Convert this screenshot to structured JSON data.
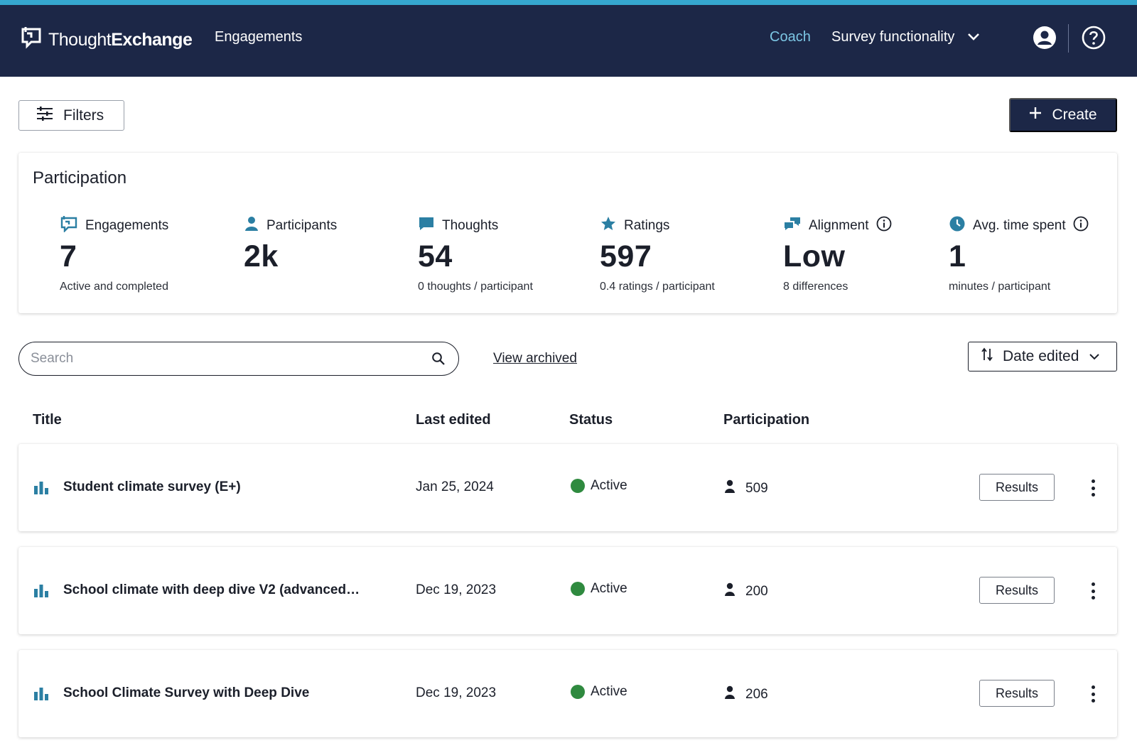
{
  "colors": {
    "header_bg": "#1c2747",
    "accent_stripe": "#35a7cf",
    "teal_icon": "#2b7fa3",
    "status_active": "#2f8a3f",
    "coach_link": "#7cc6e4"
  },
  "header": {
    "logo_light": "Thought",
    "logo_bold": "Exchange",
    "nav_engagements": "Engagements",
    "coach": "Coach",
    "workspace": "Survey functionality",
    "icons": [
      "logo-icon",
      "chevron-down-icon",
      "account-icon",
      "help-icon"
    ]
  },
  "toolbar": {
    "filters_label": "Filters",
    "create_label": "Create"
  },
  "participation": {
    "title": "Participation",
    "stats": [
      {
        "icon": "engagements-icon",
        "label": "Engagements",
        "value": "7",
        "sub": "Active and completed"
      },
      {
        "icon": "person-icon",
        "label": "Participants",
        "value": "2k",
        "sub": ""
      },
      {
        "icon": "chat-bubble-icon",
        "label": "Thoughts",
        "value": "54",
        "sub": "0 thoughts / participant"
      },
      {
        "icon": "star-icon",
        "label": "Ratings",
        "value": "597",
        "sub": "0.4 ratings / participant"
      },
      {
        "icon": "alignment-icon",
        "label": "Alignment",
        "value": "Low",
        "sub": "8 differences",
        "info": true
      },
      {
        "icon": "clock-icon",
        "label": "Avg. time spent",
        "value": "1",
        "sub": "minutes / participant",
        "info": true
      }
    ]
  },
  "search": {
    "placeholder": "Search",
    "value": ""
  },
  "view_archived": "View archived",
  "sort": {
    "label": "Date edited"
  },
  "table": {
    "columns": [
      "Title",
      "Last edited",
      "Status",
      "Participation"
    ],
    "rows": [
      {
        "title": "Student climate survey (E+)",
        "last_edited": "Jan 25, 2024",
        "status": "Active",
        "participation": "509",
        "action": "Results"
      },
      {
        "title": "School climate with deep dive V2 (advanced…",
        "last_edited": "Dec 19, 2023",
        "status": "Active",
        "participation": "200",
        "action": "Results"
      },
      {
        "title": "School Climate Survey with Deep Dive",
        "last_edited": "Dec 19, 2023",
        "status": "Active",
        "participation": "206",
        "action": "Results"
      }
    ]
  }
}
